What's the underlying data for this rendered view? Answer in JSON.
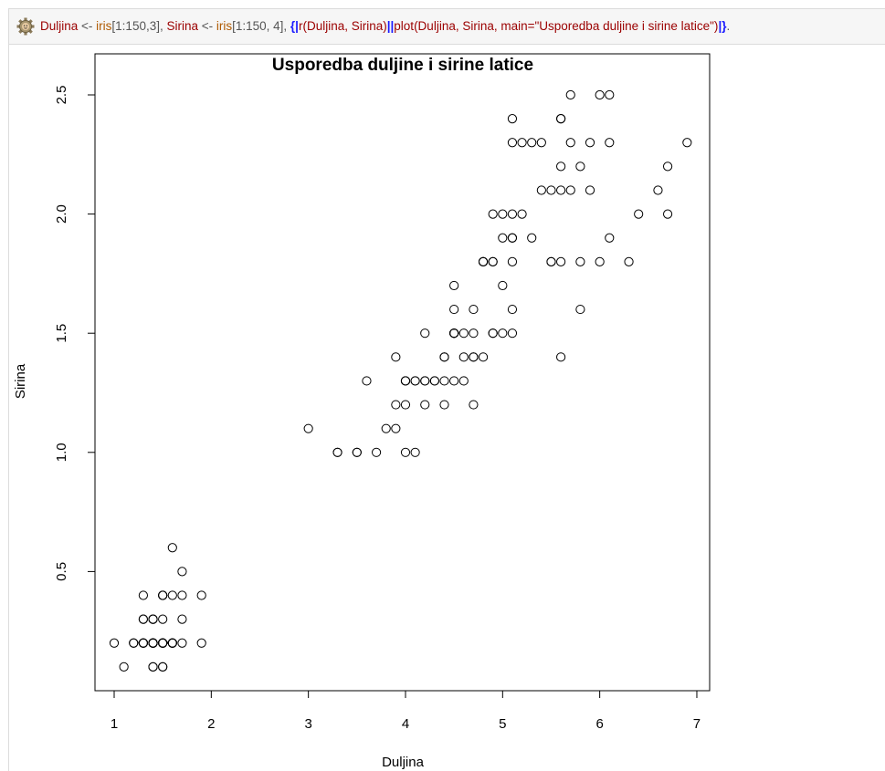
{
  "code": {
    "parts": [
      {
        "t": "Duljina",
        "c": "c-red"
      },
      {
        "t": " <- ",
        "c": "c-grey"
      },
      {
        "t": "iris",
        "c": "c-orange"
      },
      {
        "t": "[1:150,3], ",
        "c": "c-grey"
      },
      {
        "t": "Sirina",
        "c": "c-red"
      },
      {
        "t": " <- ",
        "c": "c-grey"
      },
      {
        "t": "iris",
        "c": "c-orange"
      },
      {
        "t": "[1:150, 4], ",
        "c": "c-grey"
      },
      {
        "t": "{|",
        "c": "c-blue"
      },
      {
        "t": "r(Duljina, Sirina)",
        "c": "c-red"
      },
      {
        "t": "||",
        "c": "c-blue"
      },
      {
        "t": "plot(Duljina, Sirina, main=\"Usporedba duljine i sirine latice\")",
        "c": "c-red"
      },
      {
        "t": "|}",
        "c": "c-blue"
      },
      {
        "t": ".",
        "c": "c-grey"
      }
    ],
    "icon": "gear-icon"
  },
  "chart_data": {
    "type": "scatter",
    "title": "Usporedba duljine i sirine latice",
    "xlabel": "Duljina",
    "ylabel": "Sirina",
    "xlim": [
      0.7,
      7.1
    ],
    "ylim": [
      0.0,
      2.58
    ],
    "xticks": [
      1,
      2,
      3,
      4,
      5,
      6,
      7
    ],
    "yticks": [
      0.5,
      1.0,
      1.5,
      2.0,
      2.5
    ],
    "xtick_labels": [
      "1",
      "2",
      "3",
      "4",
      "5",
      "6",
      "7"
    ],
    "ytick_labels": [
      "0.5",
      "1.0",
      "1.5",
      "2.0",
      "2.5"
    ],
    "marker": "open-circle",
    "x": [
      1.4,
      1.4,
      1.3,
      1.5,
      1.4,
      1.7,
      1.4,
      1.5,
      1.4,
      1.5,
      1.5,
      1.6,
      1.4,
      1.1,
      1.2,
      1.5,
      1.3,
      1.4,
      1.7,
      1.5,
      1.7,
      1.5,
      1.0,
      1.7,
      1.9,
      1.6,
      1.6,
      1.5,
      1.4,
      1.6,
      1.6,
      1.5,
      1.5,
      1.4,
      1.5,
      1.2,
      1.3,
      1.4,
      1.3,
      1.5,
      1.3,
      1.3,
      1.3,
      1.6,
      1.9,
      1.4,
      1.6,
      1.4,
      1.5,
      1.4,
      4.7,
      4.5,
      4.9,
      4.0,
      4.6,
      4.5,
      4.7,
      3.3,
      4.6,
      3.9,
      3.5,
      4.2,
      4.0,
      4.7,
      3.6,
      4.4,
      4.5,
      4.1,
      4.5,
      3.9,
      4.8,
      4.0,
      4.9,
      4.7,
      4.3,
      4.4,
      4.8,
      5.0,
      4.5,
      3.5,
      3.8,
      3.7,
      3.9,
      5.1,
      4.5,
      4.5,
      4.7,
      4.4,
      4.1,
      4.0,
      4.4,
      4.6,
      4.0,
      3.3,
      4.2,
      4.2,
      4.2,
      4.3,
      3.0,
      4.1,
      6.0,
      5.1,
      5.9,
      5.6,
      5.8,
      6.6,
      4.5,
      6.3,
      5.8,
      6.1,
      5.1,
      5.3,
      5.5,
      5.0,
      5.1,
      5.3,
      5.5,
      6.7,
      6.9,
      5.0,
      5.7,
      4.9,
      6.7,
      4.9,
      5.7,
      6.0,
      4.8,
      4.9,
      5.6,
      5.8,
      6.1,
      6.4,
      5.6,
      5.1,
      5.6,
      6.1,
      5.6,
      5.5,
      4.8,
      5.4,
      5.6,
      5.1,
      5.1,
      5.9,
      5.7,
      5.2,
      5.0,
      5.2,
      5.4,
      5.1
    ],
    "y": [
      0.2,
      0.2,
      0.2,
      0.2,
      0.2,
      0.4,
      0.3,
      0.2,
      0.2,
      0.1,
      0.2,
      0.2,
      0.1,
      0.1,
      0.2,
      0.4,
      0.4,
      0.3,
      0.3,
      0.3,
      0.2,
      0.4,
      0.2,
      0.5,
      0.2,
      0.2,
      0.4,
      0.2,
      0.2,
      0.2,
      0.2,
      0.4,
      0.1,
      0.2,
      0.2,
      0.2,
      0.2,
      0.1,
      0.2,
      0.2,
      0.3,
      0.3,
      0.2,
      0.6,
      0.4,
      0.3,
      0.2,
      0.2,
      0.2,
      0.2,
      1.4,
      1.5,
      1.5,
      1.3,
      1.5,
      1.3,
      1.6,
      1.0,
      1.3,
      1.4,
      1.0,
      1.5,
      1.0,
      1.4,
      1.3,
      1.4,
      1.5,
      1.0,
      1.5,
      1.1,
      1.8,
      1.3,
      1.5,
      1.2,
      1.3,
      1.4,
      1.4,
      1.7,
      1.5,
      1.0,
      1.1,
      1.0,
      1.2,
      1.6,
      1.5,
      1.6,
      1.5,
      1.3,
      1.3,
      1.3,
      1.2,
      1.4,
      1.2,
      1.0,
      1.3,
      1.2,
      1.3,
      1.3,
      1.1,
      1.3,
      2.5,
      1.9,
      2.1,
      1.8,
      2.2,
      2.1,
      1.7,
      1.8,
      1.8,
      2.5,
      2.0,
      1.9,
      2.1,
      2.0,
      2.4,
      2.3,
      1.8,
      2.2,
      2.3,
      1.5,
      2.3,
      2.0,
      2.0,
      1.8,
      2.1,
      1.8,
      1.8,
      1.8,
      2.1,
      1.6,
      1.9,
      2.0,
      2.2,
      1.5,
      1.4,
      2.3,
      2.4,
      1.8,
      1.8,
      2.1,
      2.4,
      2.3,
      1.9,
      2.3,
      2.5,
      2.3,
      1.9,
      2.0,
      2.3,
      1.8
    ]
  }
}
